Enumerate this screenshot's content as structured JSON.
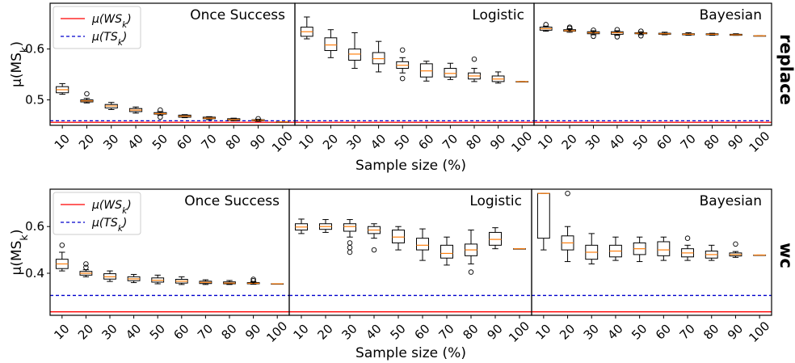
{
  "chart_data": [
    {
      "type": "box",
      "row_label": "replace",
      "xlabel": "Sample size (%)",
      "ylabel": "μ(MS_k)",
      "ylim": [
        0.45,
        0.69
      ],
      "yticks": [
        0.5,
        0.6
      ],
      "categories": [
        "10",
        "20",
        "30",
        "40",
        "50",
        "60",
        "70",
        "80",
        "90",
        "100"
      ],
      "legend": {
        "placement": "top-left",
        "entries": [
          {
            "label": "μ(WS_k)",
            "color": "#ff0000",
            "style": "solid"
          },
          {
            "label": "μ(TS_k)",
            "color": "#0000cc",
            "style": "dashed"
          }
        ]
      },
      "reference_lines": {
        "WS": 0.456,
        "TS": 0.459
      },
      "panels": [
        {
          "title": "Once Success",
          "boxes": [
            {
              "min": 0.511,
              "q1": 0.514,
              "median": 0.52,
              "q3": 0.526,
              "max": 0.532,
              "outliers": []
            },
            {
              "min": 0.494,
              "q1": 0.496,
              "median": 0.498,
              "q3": 0.5,
              "max": 0.503,
              "outliers": [
                0.512
              ]
            },
            {
              "min": 0.481,
              "q1": 0.484,
              "median": 0.488,
              "q3": 0.491,
              "max": 0.495,
              "outliers": []
            },
            {
              "min": 0.474,
              "q1": 0.477,
              "median": 0.48,
              "q3": 0.483,
              "max": 0.486,
              "outliers": []
            },
            {
              "min": 0.47,
              "q1": 0.472,
              "median": 0.473,
              "q3": 0.475,
              "max": 0.477,
              "outliers": [
                0.466,
                0.48
              ]
            },
            {
              "min": 0.465,
              "q1": 0.466,
              "median": 0.468,
              "q3": 0.47,
              "max": 0.471,
              "outliers": []
            },
            {
              "min": 0.461,
              "q1": 0.463,
              "median": 0.464,
              "q3": 0.466,
              "max": 0.467,
              "outliers": []
            },
            {
              "min": 0.459,
              "q1": 0.46,
              "median": 0.461,
              "q3": 0.463,
              "max": 0.464,
              "outliers": []
            },
            {
              "min": 0.458,
              "q1": 0.459,
              "median": 0.46,
              "q3": 0.461,
              "max": 0.462,
              "outliers": [
                0.463
              ]
            },
            {
              "min": 0.457,
              "q1": 0.457,
              "median": 0.457,
              "q3": 0.457,
              "max": 0.457,
              "outliers": []
            }
          ]
        },
        {
          "title": "Logistic",
          "boxes": [
            {
              "min": 0.62,
              "q1": 0.625,
              "median": 0.634,
              "q3": 0.643,
              "max": 0.663,
              "outliers": []
            },
            {
              "min": 0.583,
              "q1": 0.597,
              "median": 0.608,
              "q3": 0.622,
              "max": 0.638,
              "outliers": []
            },
            {
              "min": 0.562,
              "q1": 0.578,
              "median": 0.59,
              "q3": 0.6,
              "max": 0.632,
              "outliers": []
            },
            {
              "min": 0.555,
              "q1": 0.571,
              "median": 0.581,
              "q3": 0.593,
              "max": 0.615,
              "outliers": []
            },
            {
              "min": 0.553,
              "q1": 0.562,
              "median": 0.568,
              "q3": 0.575,
              "max": 0.583,
              "outliers": [
                0.542,
                0.598
              ]
            },
            {
              "min": 0.537,
              "q1": 0.545,
              "median": 0.557,
              "q3": 0.571,
              "max": 0.576,
              "outliers": []
            },
            {
              "min": 0.54,
              "q1": 0.545,
              "median": 0.552,
              "q3": 0.562,
              "max": 0.572,
              "outliers": []
            },
            {
              "min": 0.536,
              "q1": 0.541,
              "median": 0.547,
              "q3": 0.553,
              "max": 0.562,
              "outliers": [
                0.58
              ]
            },
            {
              "min": 0.533,
              "q1": 0.536,
              "median": 0.541,
              "q3": 0.547,
              "max": 0.555,
              "outliers": []
            },
            {
              "min": 0.536,
              "q1": 0.536,
              "median": 0.536,
              "q3": 0.536,
              "max": 0.536,
              "outliers": []
            }
          ]
        },
        {
          "title": "Bayesian",
          "boxes": [
            {
              "min": 0.635,
              "q1": 0.637,
              "median": 0.64,
              "q3": 0.643,
              "max": 0.645,
              "outliers": [
                0.648
              ]
            },
            {
              "min": 0.633,
              "q1": 0.635,
              "median": 0.636,
              "q3": 0.638,
              "max": 0.64,
              "outliers": [
                0.641,
                0.643
              ]
            },
            {
              "min": 0.628,
              "q1": 0.63,
              "median": 0.632,
              "q3": 0.634,
              "max": 0.636,
              "outliers": [
                0.625,
                0.637
              ]
            },
            {
              "min": 0.627,
              "q1": 0.629,
              "median": 0.632,
              "q3": 0.634,
              "max": 0.636,
              "outliers": [
                0.624,
                0.638
              ]
            },
            {
              "min": 0.628,
              "q1": 0.63,
              "median": 0.631,
              "q3": 0.632,
              "max": 0.634,
              "outliers": [
                0.626,
                0.635
              ]
            },
            {
              "min": 0.628,
              "q1": 0.629,
              "median": 0.63,
              "q3": 0.631,
              "max": 0.633,
              "outliers": []
            },
            {
              "min": 0.627,
              "q1": 0.628,
              "median": 0.629,
              "q3": 0.63,
              "max": 0.632,
              "outliers": []
            },
            {
              "min": 0.627,
              "q1": 0.628,
              "median": 0.629,
              "q3": 0.63,
              "max": 0.631,
              "outliers": []
            },
            {
              "min": 0.627,
              "q1": 0.627,
              "median": 0.628,
              "q3": 0.629,
              "max": 0.63,
              "outliers": []
            },
            {
              "min": 0.626,
              "q1": 0.626,
              "median": 0.626,
              "q3": 0.626,
              "max": 0.626,
              "outliers": []
            }
          ]
        }
      ]
    },
    {
      "type": "box",
      "row_label": "wc",
      "xlabel": "Sample size (%)",
      "ylabel": "μ(MS_k)",
      "ylim": [
        0.22,
        0.76
      ],
      "yticks": [
        0.4,
        0.6
      ],
      "categories": [
        "10",
        "20",
        "30",
        "40",
        "50",
        "60",
        "70",
        "80",
        "90",
        "100"
      ],
      "legend": {
        "placement": "top-left",
        "entries": [
          {
            "label": "μ(WS_k)",
            "color": "#ff0000",
            "style": "solid"
          },
          {
            "label": "μ(TS_k)",
            "color": "#0000cc",
            "style": "dashed"
          }
        ]
      },
      "reference_lines": {
        "WS": 0.235,
        "TS": 0.305
      },
      "panels": [
        {
          "title": "Once Success",
          "boxes": [
            {
              "min": 0.41,
              "q1": 0.42,
              "median": 0.44,
              "q3": 0.46,
              "max": 0.49,
              "outliers": [
                0.52
              ]
            },
            {
              "min": 0.385,
              "q1": 0.392,
              "median": 0.4,
              "q3": 0.408,
              "max": 0.415,
              "outliers": [
                0.425,
                0.44
              ]
            },
            {
              "min": 0.365,
              "q1": 0.375,
              "median": 0.385,
              "q3": 0.398,
              "max": 0.41,
              "outliers": []
            },
            {
              "min": 0.36,
              "q1": 0.368,
              "median": 0.376,
              "q3": 0.385,
              "max": 0.395,
              "outliers": []
            },
            {
              "min": 0.355,
              "q1": 0.362,
              "median": 0.37,
              "q3": 0.38,
              "max": 0.392,
              "outliers": []
            },
            {
              "min": 0.352,
              "q1": 0.358,
              "median": 0.366,
              "q3": 0.374,
              "max": 0.385,
              "outliers": []
            },
            {
              "min": 0.352,
              "q1": 0.356,
              "median": 0.361,
              "q3": 0.366,
              "max": 0.372,
              "outliers": []
            },
            {
              "min": 0.352,
              "q1": 0.355,
              "median": 0.358,
              "q3": 0.363,
              "max": 0.369,
              "outliers": []
            },
            {
              "min": 0.353,
              "q1": 0.355,
              "median": 0.357,
              "q3": 0.36,
              "max": 0.364,
              "outliers": [
                0.368,
                0.374
              ]
            },
            {
              "min": 0.355,
              "q1": 0.355,
              "median": 0.355,
              "q3": 0.355,
              "max": 0.355,
              "outliers": []
            }
          ]
        },
        {
          "title": "Logistic",
          "boxes": [
            {
              "min": 0.57,
              "q1": 0.585,
              "median": 0.598,
              "q3": 0.612,
              "max": 0.632,
              "outliers": []
            },
            {
              "min": 0.575,
              "q1": 0.588,
              "median": 0.6,
              "q3": 0.612,
              "max": 0.63,
              "outliers": []
            },
            {
              "min": 0.555,
              "q1": 0.58,
              "median": 0.6,
              "q3": 0.612,
              "max": 0.63,
              "outliers": [
                0.49,
                0.51,
                0.53
              ]
            },
            {
              "min": 0.55,
              "q1": 0.57,
              "median": 0.585,
              "q3": 0.6,
              "max": 0.612,
              "outliers": [
                0.5
              ]
            },
            {
              "min": 0.5,
              "q1": 0.53,
              "median": 0.555,
              "q3": 0.585,
              "max": 0.6,
              "outliers": []
            },
            {
              "min": 0.455,
              "q1": 0.5,
              "median": 0.52,
              "q3": 0.55,
              "max": 0.59,
              "outliers": []
            },
            {
              "min": 0.435,
              "q1": 0.465,
              "median": 0.485,
              "q3": 0.52,
              "max": 0.555,
              "outliers": []
            },
            {
              "min": 0.44,
              "q1": 0.475,
              "median": 0.5,
              "q3": 0.525,
              "max": 0.585,
              "outliers": [
                0.405
              ]
            },
            {
              "min": 0.505,
              "q1": 0.52,
              "median": 0.545,
              "q3": 0.575,
              "max": 0.595,
              "outliers": []
            },
            {
              "min": 0.505,
              "q1": 0.505,
              "median": 0.505,
              "q3": 0.505,
              "max": 0.505,
              "outliers": []
            }
          ]
        },
        {
          "title": "Bayesian",
          "boxes": [
            {
              "min": 0.5,
              "q1": 0.55,
              "median": 0.742,
              "q3": 0.742,
              "max": 0.742,
              "outliers": []
            },
            {
              "min": 0.45,
              "q1": 0.5,
              "median": 0.53,
              "q3": 0.56,
              "max": 0.6,
              "outliers": [
                0.742
              ]
            },
            {
              "min": 0.44,
              "q1": 0.46,
              "median": 0.49,
              "q3": 0.52,
              "max": 0.57,
              "outliers": []
            },
            {
              "min": 0.455,
              "q1": 0.47,
              "median": 0.495,
              "q3": 0.52,
              "max": 0.555,
              "outliers": []
            },
            {
              "min": 0.45,
              "q1": 0.48,
              "median": 0.505,
              "q3": 0.53,
              "max": 0.555,
              "outliers": []
            },
            {
              "min": 0.455,
              "q1": 0.475,
              "median": 0.5,
              "q3": 0.535,
              "max": 0.555,
              "outliers": []
            },
            {
              "min": 0.455,
              "q1": 0.47,
              "median": 0.487,
              "q3": 0.505,
              "max": 0.52,
              "outliers": [
                0.55
              ]
            },
            {
              "min": 0.455,
              "q1": 0.465,
              "median": 0.48,
              "q3": 0.495,
              "max": 0.52,
              "outliers": []
            },
            {
              "min": 0.468,
              "q1": 0.474,
              "median": 0.48,
              "q3": 0.487,
              "max": 0.493,
              "outliers": [
                0.525
              ]
            },
            {
              "min": 0.478,
              "q1": 0.478,
              "median": 0.478,
              "q3": 0.478,
              "max": 0.478,
              "outliers": []
            }
          ]
        }
      ]
    }
  ]
}
